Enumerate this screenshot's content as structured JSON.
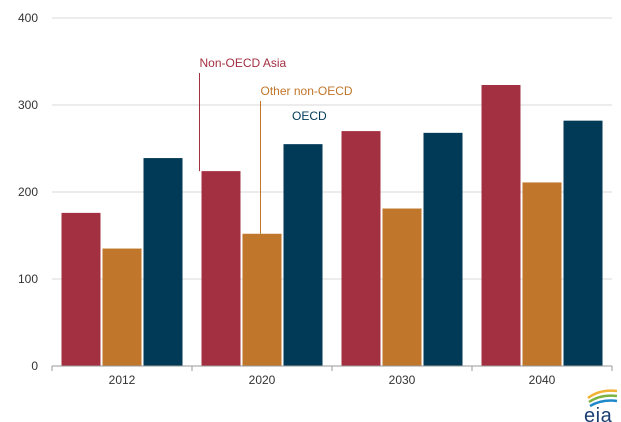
{
  "chart_data": {
    "type": "bar",
    "title": "",
    "xlabel": "",
    "ylabel": "",
    "categories": [
      "2012",
      "2020",
      "2030",
      "2040"
    ],
    "series": [
      {
        "name": "Non-OECD Asia",
        "color": "#a33041",
        "values": [
          176,
          224,
          270,
          323
        ]
      },
      {
        "name": "Other non-OECD",
        "color": "#c0762b",
        "values": [
          135,
          152,
          181,
          211
        ]
      },
      {
        "name": "OECD",
        "color": "#003a57",
        "values": [
          239,
          255,
          268,
          282
        ]
      }
    ],
    "ylim": [
      0,
      400
    ],
    "yticks": [
      "0",
      "100",
      "200",
      "300",
      "400"
    ],
    "grid": true,
    "legend": "inline-annotations"
  },
  "logo": {
    "text": "eia",
    "icon": "eia-logo-arcs"
  }
}
